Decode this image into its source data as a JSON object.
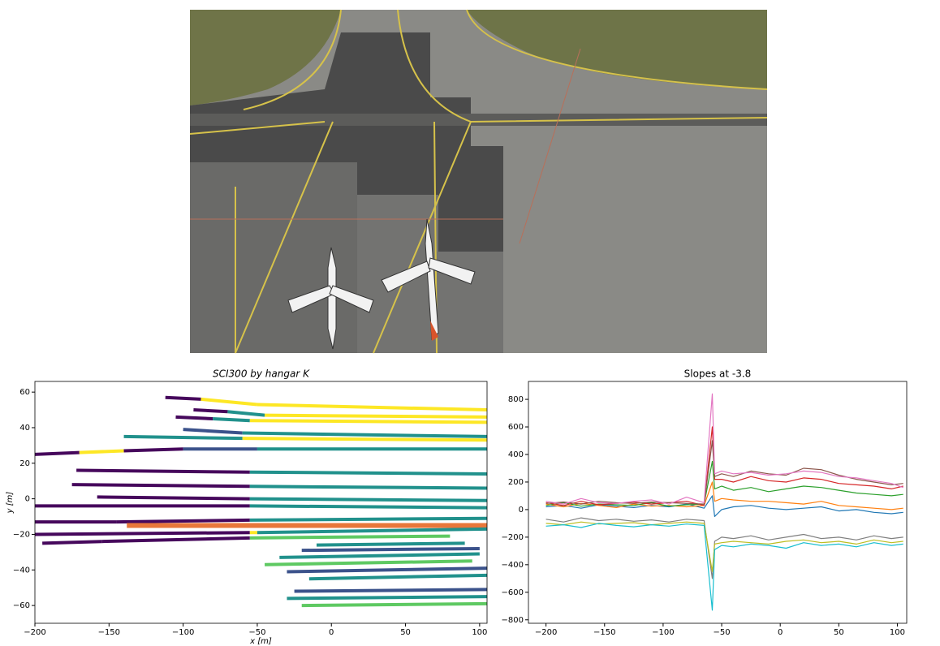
{
  "chart_data": [
    {
      "type": "track",
      "title": "SCI300 by hangar K",
      "xlabel": "x [m]",
      "ylabel": "y [m]",
      "xlim": [
        -200,
        105
      ],
      "ylim": [
        -70,
        66
      ],
      "xticks": [
        {
          "value": -200,
          "label": "−200"
        },
        {
          "value": -150,
          "label": "−150"
        },
        {
          "value": -100,
          "label": "−100"
        },
        {
          "value": -50,
          "label": "−50"
        },
        0,
        50,
        100
      ],
      "yticks": [
        {
          "value": -60,
          "label": "−60"
        },
        {
          "value": -40,
          "label": "−40"
        },
        {
          "value": -20,
          "label": "−20"
        },
        0,
        20,
        40,
        60
      ],
      "series": [
        {
          "x": [
            -112,
            -88,
            -50,
            105
          ],
          "y": [
            57,
            56,
            53,
            50
          ],
          "colors": [
            "#46085c",
            "#fde725",
            "#fde725"
          ]
        },
        {
          "x": [
            -93,
            -70,
            -45,
            105
          ],
          "y": [
            50,
            49,
            47,
            46
          ],
          "colors": [
            "#46085c",
            "#21918c",
            "#fde725"
          ]
        },
        {
          "x": [
            -105,
            -80,
            -55,
            105
          ],
          "y": [
            46,
            45,
            44,
            43
          ],
          "colors": [
            "#46085c",
            "#21918c",
            "#fde725"
          ]
        },
        {
          "x": [
            -100,
            -60,
            105
          ],
          "y": [
            39,
            37,
            35
          ],
          "colors": [
            "#3b528b",
            "#21918c"
          ]
        },
        {
          "x": [
            -140,
            -60,
            105
          ],
          "y": [
            35,
            34,
            33
          ],
          "colors": [
            "#21918c",
            "#fde725"
          ]
        },
        {
          "x": [
            -200,
            -170,
            -140,
            -100,
            -50,
            105
          ],
          "y": [
            25,
            26,
            27,
            28,
            28,
            28
          ],
          "colors": [
            "#46085c",
            "#fde725",
            "#46085c",
            "#3b528b",
            "#21918c"
          ]
        },
        {
          "x": [
            -172,
            -55,
            105
          ],
          "y": [
            16,
            15,
            14
          ],
          "colors": [
            "#46085c",
            "#21918c"
          ]
        },
        {
          "x": [
            -175,
            -55,
            105
          ],
          "y": [
            8,
            7,
            6
          ],
          "colors": [
            "#46085c",
            "#21918c"
          ]
        },
        {
          "x": [
            -158,
            -55,
            105
          ],
          "y": [
            1,
            0,
            -1
          ],
          "colors": [
            "#46085c",
            "#21918c"
          ]
        },
        {
          "x": [
            -200,
            -55,
            105
          ],
          "y": [
            -4,
            -4,
            -5
          ],
          "colors": [
            "#46085c",
            "#21918c"
          ]
        },
        {
          "x": [
            -200,
            -145,
            -55,
            105
          ],
          "y": [
            -13,
            -13,
            -12,
            -11
          ],
          "colors": [
            "#46085c",
            "#46085c",
            "#21918c"
          ]
        },
        {
          "x": [
            -138,
            105
          ],
          "y": [
            -15,
            -15
          ],
          "colors": [
            "#e8773a"
          ]
        },
        {
          "x": [
            -200,
            -55,
            -50,
            105
          ],
          "y": [
            -20,
            -19,
            -19,
            -17
          ],
          "colors": [
            "#46085c",
            "#fde725",
            "#21918c"
          ]
        },
        {
          "x": [
            -195,
            -155,
            -55,
            80
          ],
          "y": [
            -25,
            -24,
            -22,
            -21
          ],
          "colors": [
            "#46085c",
            "#46085c",
            "#5ec962"
          ]
        },
        {
          "x": [
            -10,
            90
          ],
          "y": [
            -26,
            -25
          ],
          "colors": [
            "#21918c"
          ]
        },
        {
          "x": [
            -20,
            100
          ],
          "y": [
            -29,
            -28
          ],
          "colors": [
            "#3b528b"
          ]
        },
        {
          "x": [
            -35,
            100
          ],
          "y": [
            -33,
            -31
          ],
          "colors": [
            "#21918c"
          ]
        },
        {
          "x": [
            -45,
            95
          ],
          "y": [
            -37,
            -35
          ],
          "colors": [
            "#5ec962"
          ]
        },
        {
          "x": [
            -30,
            105
          ],
          "y": [
            -41,
            -39
          ],
          "colors": [
            "#3b528b"
          ]
        },
        {
          "x": [
            -15,
            105
          ],
          "y": [
            -45,
            -43
          ],
          "colors": [
            "#21918c"
          ]
        },
        {
          "x": [
            -25,
            105
          ],
          "y": [
            -52,
            -51
          ],
          "colors": [
            "#3b528b"
          ]
        },
        {
          "x": [
            -30,
            105
          ],
          "y": [
            -56,
            -55
          ],
          "colors": [
            "#21918c"
          ]
        },
        {
          "x": [
            -20,
            105
          ],
          "y": [
            -60,
            -59
          ],
          "colors": [
            "#5ec962"
          ]
        }
      ]
    },
    {
      "type": "line",
      "title": "Slopes at -3.8",
      "xlim": [
        -215,
        108
      ],
      "ylim": [
        -825,
        930
      ],
      "xticks": [
        {
          "value": -200,
          "label": "−200"
        },
        {
          "value": -150,
          "label": "−150"
        },
        {
          "value": -100,
          "label": "−100"
        },
        {
          "value": -50,
          "label": "−50"
        },
        0,
        50,
        100
      ],
      "yticks": [
        {
          "value": -800,
          "label": "−800"
        },
        {
          "value": -600,
          "label": "−600"
        },
        {
          "value": -400,
          "label": "−400"
        },
        {
          "value": -200,
          "label": "−200"
        },
        0,
        200,
        400,
        600,
        800
      ],
      "x": [
        -200,
        -185,
        -170,
        -155,
        -140,
        -125,
        -110,
        -95,
        -80,
        -65,
        -58,
        -56,
        -50,
        -40,
        -25,
        -10,
        5,
        20,
        35,
        50,
        65,
        80,
        95,
        105
      ],
      "series": [
        {
          "color": "#1f77b4",
          "values": [
            20,
            30,
            10,
            35,
            25,
            15,
            30,
            20,
            40,
            10,
            100,
            -50,
            0,
            20,
            30,
            10,
            0,
            10,
            20,
            -10,
            0,
            -20,
            -30,
            -20
          ]
        },
        {
          "color": "#ff7f0e",
          "values": [
            40,
            20,
            45,
            30,
            15,
            40,
            25,
            30,
            20,
            30,
            200,
            60,
            80,
            70,
            60,
            60,
            50,
            40,
            60,
            30,
            20,
            10,
            0,
            10
          ]
        },
        {
          "color": "#2ca02c",
          "values": [
            30,
            50,
            25,
            40,
            35,
            30,
            50,
            25,
            35,
            40,
            350,
            150,
            170,
            140,
            160,
            130,
            150,
            170,
            160,
            140,
            120,
            110,
            100,
            110
          ]
        },
        {
          "color": "#d62728",
          "values": [
            50,
            30,
            60,
            35,
            45,
            55,
            40,
            50,
            60,
            30,
            600,
            220,
            220,
            200,
            240,
            210,
            200,
            230,
            220,
            190,
            180,
            170,
            150,
            170
          ]
        },
        {
          "color": "#8c564b",
          "values": [
            45,
            55,
            40,
            60,
            50,
            45,
            55,
            50,
            45,
            40,
            500,
            240,
            260,
            240,
            280,
            260,
            250,
            300,
            290,
            250,
            220,
            200,
            180,
            190
          ]
        },
        {
          "color": "#e377c2",
          "values": [
            60,
            40,
            80,
            50,
            45,
            60,
            70,
            40,
            90,
            50,
            840,
            260,
            280,
            260,
            270,
            250,
            260,
            280,
            270,
            240,
            230,
            210,
            190,
            160
          ]
        },
        {
          "color": "#7f7f7f",
          "values": [
            -70,
            -90,
            -60,
            -80,
            -70,
            -85,
            -75,
            -90,
            -70,
            -80,
            -500,
            -230,
            -200,
            -210,
            -190,
            -220,
            -200,
            -180,
            -210,
            -200,
            -220,
            -190,
            -210,
            -200
          ]
        },
        {
          "color": "#bcbd22",
          "values": [
            -100,
            -110,
            -90,
            -105,
            -100,
            -95,
            -110,
            -100,
            -90,
            -100,
            -450,
            -250,
            -240,
            -230,
            -240,
            -250,
            -230,
            -220,
            -240,
            -230,
            -250,
            -220,
            -240,
            -230
          ]
        },
        {
          "color": "#17becf",
          "values": [
            -120,
            -110,
            -130,
            -100,
            -115,
            -125,
            -110,
            -120,
            -105,
            -115,
            -730,
            -290,
            -260,
            -270,
            -250,
            -260,
            -280,
            -240,
            -260,
            -250,
            -270,
            -240,
            -260,
            -250
          ]
        }
      ]
    }
  ]
}
